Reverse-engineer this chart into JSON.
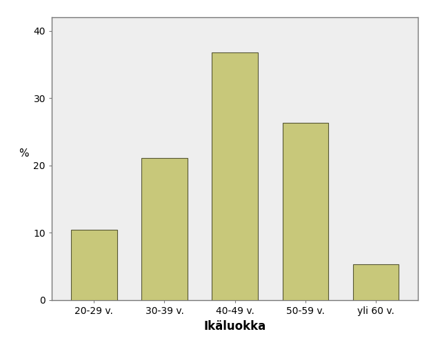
{
  "categories": [
    "20-29 v.",
    "30-39 v.",
    "40-49 v.",
    "50-59 v.",
    "yli 60 v."
  ],
  "values": [
    10.5,
    21.1,
    36.8,
    26.3,
    5.3
  ],
  "bar_color": "#c8c87a",
  "bar_edgecolor": "#555533",
  "xlabel": "Ikäluokka",
  "ylabel": "%",
  "ylim": [
    0,
    42
  ],
  "yticks": [
    0,
    10,
    20,
    30,
    40
  ],
  "outer_background_color": "#ffffff",
  "plot_background_color": "#eeeeee",
  "plot_border_color": "#777777",
  "xlabel_fontsize": 12,
  "ylabel_fontsize": 11,
  "tick_fontsize": 10,
  "xlabel_fontweight": "bold",
  "bar_width": 0.65
}
